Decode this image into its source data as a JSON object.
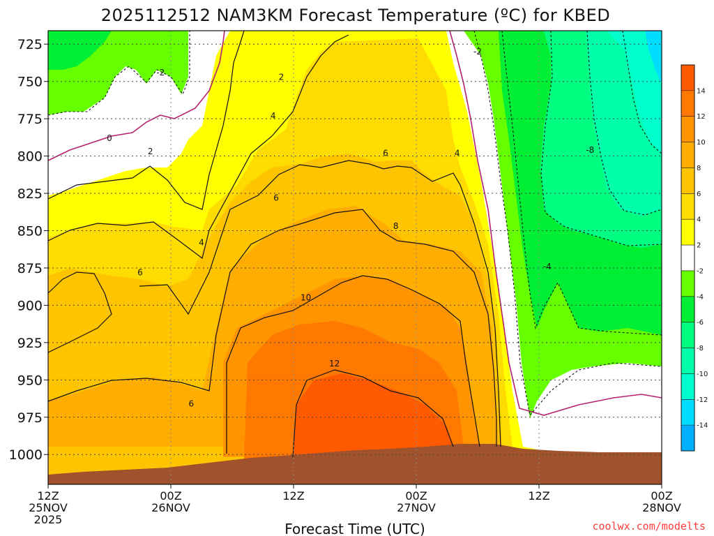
{
  "chart_data": {
    "type": "heatmap",
    "subtype": "time-height filled contour",
    "title": "2025112512 NAM3KM Forecast Temperature (ºC) for KBED",
    "xlabel": "Forecast Time (UTC)",
    "ylabel": "",
    "credit": "coolwx.com/modelts",
    "x_ticks": [
      {
        "hours": 0,
        "line1": "12Z",
        "line2": "25NOV",
        "line3": "2025"
      },
      {
        "hours": 12,
        "line1": "00Z",
        "line2": "26NOV",
        "line3": ""
      },
      {
        "hours": 24,
        "line1": "12Z",
        "line2": "",
        "line3": ""
      },
      {
        "hours": 36,
        "line1": "00Z",
        "line2": "27NOV",
        "line3": ""
      },
      {
        "hours": 48,
        "line1": "12Z",
        "line2": "",
        "line3": ""
      },
      {
        "hours": 60,
        "line1": "00Z",
        "line2": "28NOV",
        "line3": ""
      }
    ],
    "xlim_hours": [
      0,
      60
    ],
    "y_ticks": [
      725,
      750,
      775,
      800,
      825,
      850,
      875,
      900,
      925,
      950,
      975,
      1000
    ],
    "ylim_hpa": [
      1020,
      716
    ],
    "contour_labels": [
      {
        "text": "-2",
        "hours": 11.0,
        "hpa": 744
      },
      {
        "text": "2",
        "hours": 22.8,
        "hpa": 747
      },
      {
        "text": "0",
        "hours": 6.0,
        "hpa": 788
      },
      {
        "text": "4",
        "hours": 22.0,
        "hpa": 773
      },
      {
        "text": "2",
        "hours": 10.0,
        "hpa": 797
      },
      {
        "text": "6",
        "hours": 33.0,
        "hpa": 798
      },
      {
        "text": "4",
        "hours": 40.0,
        "hpa": 798
      },
      {
        "text": "-8",
        "hours": 53.0,
        "hpa": 796
      },
      {
        "text": "6",
        "hours": 22.3,
        "hpa": 828
      },
      {
        "text": "8",
        "hours": 34.0,
        "hpa": 847
      },
      {
        "text": "4",
        "hours": 15.0,
        "hpa": 858
      },
      {
        "text": "-4",
        "hours": 48.8,
        "hpa": 874
      },
      {
        "text": "6",
        "hours": 9.0,
        "hpa": 878
      },
      {
        "text": "10",
        "hours": 25.2,
        "hpa": 895
      },
      {
        "text": "12",
        "hours": 28.0,
        "hpa": 939
      },
      {
        "text": "6",
        "hours": 14.0,
        "hpa": 966
      },
      {
        "text": "-2",
        "hours": 42.0,
        "hpa": 730
      }
    ],
    "colorbar": {
      "ticks": [
        "14",
        "12",
        "10",
        "8",
        "6",
        "4",
        "2",
        "-2",
        "-4",
        "-6",
        "-8",
        "-10",
        "-12",
        "-14"
      ],
      "colors": [
        "#ff5a00",
        "#ff7800",
        "#ff9400",
        "#ffad00",
        "#ffc400",
        "#ffdc00",
        "#ffff00",
        "#ffffff",
        "#66ff00",
        "#00ee33",
        "#00ff80",
        "#00ffaa",
        "#00ffcc",
        "#00ddff",
        "#00b0ff"
      ]
    },
    "terrain_color": "#a0522d"
  }
}
